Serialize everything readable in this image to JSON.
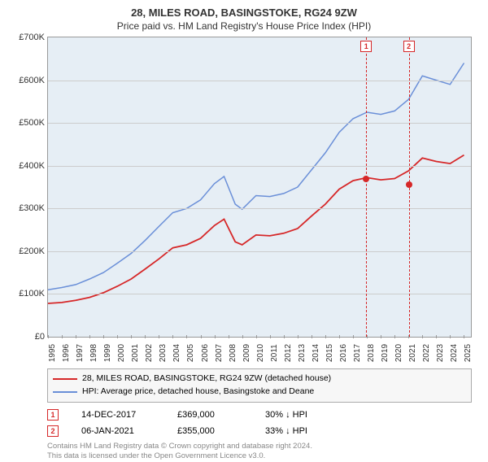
{
  "title": "28, MILES ROAD, BASINGSTOKE, RG24 9ZW",
  "subtitle": "Price paid vs. HM Land Registry's House Price Index (HPI)",
  "chart": {
    "type": "line",
    "background_color": "#e6eef5",
    "grid_color": "#cccccc",
    "border_color": "#999999",
    "xlim": [
      1995,
      2025.5
    ],
    "ylim": [
      0,
      700000
    ],
    "yticks": [
      0,
      100000,
      200000,
      300000,
      400000,
      500000,
      600000,
      700000
    ],
    "ytick_labels": [
      "£0",
      "£100K",
      "£200K",
      "£300K",
      "£400K",
      "£500K",
      "£600K",
      "£700K"
    ],
    "xtick_years": [
      1995,
      1996,
      1997,
      1998,
      1999,
      2000,
      2001,
      2002,
      2003,
      2004,
      2005,
      2006,
      2007,
      2008,
      2009,
      2010,
      2011,
      2012,
      2013,
      2014,
      2015,
      2016,
      2017,
      2018,
      2019,
      2020,
      2021,
      2022,
      2023,
      2024,
      2025
    ],
    "label_fontsize": 11,
    "tick_fontsize": 10,
    "series": [
      {
        "name": "hpi",
        "color": "#6a8fd8",
        "line_width": 1.5,
        "points": [
          [
            1995,
            110000
          ],
          [
            1996,
            115000
          ],
          [
            1997,
            122000
          ],
          [
            1998,
            135000
          ],
          [
            1999,
            150000
          ],
          [
            2000,
            172000
          ],
          [
            2001,
            195000
          ],
          [
            2002,
            225000
          ],
          [
            2003,
            258000
          ],
          [
            2004,
            290000
          ],
          [
            2005,
            300000
          ],
          [
            2006,
            320000
          ],
          [
            2007,
            358000
          ],
          [
            2007.7,
            375000
          ],
          [
            2008.5,
            310000
          ],
          [
            2009,
            298000
          ],
          [
            2010,
            330000
          ],
          [
            2011,
            328000
          ],
          [
            2012,
            335000
          ],
          [
            2013,
            350000
          ],
          [
            2014,
            390000
          ],
          [
            2015,
            430000
          ],
          [
            2016,
            478000
          ],
          [
            2017,
            510000
          ],
          [
            2018,
            525000
          ],
          [
            2019,
            520000
          ],
          [
            2020,
            528000
          ],
          [
            2021,
            555000
          ],
          [
            2022,
            610000
          ],
          [
            2023,
            600000
          ],
          [
            2024,
            590000
          ],
          [
            2025,
            640000
          ]
        ]
      },
      {
        "name": "price_paid",
        "color": "#d62728",
        "line_width": 1.8,
        "points": [
          [
            1995,
            78000
          ],
          [
            1996,
            80000
          ],
          [
            1997,
            85000
          ],
          [
            1998,
            92000
          ],
          [
            1999,
            103000
          ],
          [
            2000,
            118000
          ],
          [
            2001,
            135000
          ],
          [
            2002,
            158000
          ],
          [
            2003,
            182000
          ],
          [
            2004,
            208000
          ],
          [
            2005,
            215000
          ],
          [
            2006,
            230000
          ],
          [
            2007,
            260000
          ],
          [
            2007.7,
            275000
          ],
          [
            2008.5,
            222000
          ],
          [
            2009,
            215000
          ],
          [
            2010,
            238000
          ],
          [
            2011,
            236000
          ],
          [
            2012,
            242000
          ],
          [
            2013,
            253000
          ],
          [
            2014,
            282000
          ],
          [
            2015,
            310000
          ],
          [
            2016,
            345000
          ],
          [
            2017,
            365000
          ],
          [
            2018,
            372000
          ],
          [
            2019,
            367000
          ],
          [
            2020,
            370000
          ],
          [
            2021,
            388000
          ],
          [
            2022,
            418000
          ],
          [
            2023,
            410000
          ],
          [
            2024,
            405000
          ],
          [
            2025,
            425000
          ]
        ]
      }
    ],
    "markers": [
      {
        "id": "1",
        "x": 2017.95,
        "y": 369000,
        "color": "#d62728",
        "box_color": "#d62728"
      },
      {
        "id": "2",
        "x": 2021.02,
        "y": 355000,
        "color": "#d62728",
        "box_color": "#d62728"
      }
    ]
  },
  "legend": {
    "items": [
      {
        "color": "#d62728",
        "label": "28, MILES ROAD, BASINGSTOKE, RG24 9ZW (detached house)"
      },
      {
        "color": "#6a8fd8",
        "label": "HPI: Average price, detached house, Basingstoke and Deane"
      }
    ]
  },
  "marker_table": [
    {
      "id": "1",
      "box_color": "#d62728",
      "date": "14-DEC-2017",
      "price": "£369,000",
      "diff": "30% ↓ HPI"
    },
    {
      "id": "2",
      "box_color": "#d62728",
      "date": "06-JAN-2021",
      "price": "£355,000",
      "diff": "33% ↓ HPI"
    }
  ],
  "footer": {
    "line1": "Contains HM Land Registry data © Crown copyright and database right 2024.",
    "line2": "This data is licensed under the Open Government Licence v3.0."
  }
}
